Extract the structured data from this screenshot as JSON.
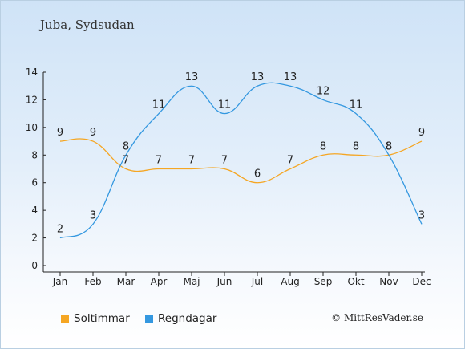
{
  "chart_data": {
    "type": "line",
    "title": "Juba, Sydsudan",
    "categories": [
      "Jan",
      "Feb",
      "Mar",
      "Apr",
      "Maj",
      "Jun",
      "Jul",
      "Aug",
      "Sep",
      "Okt",
      "Nov",
      "Dec"
    ],
    "series": [
      {
        "name": "Soltimmar",
        "color": "#f5a623",
        "values": [
          9,
          9,
          7,
          7,
          7,
          7,
          6,
          7,
          8,
          8,
          8,
          9
        ]
      },
      {
        "name": "Regndagar",
        "color": "#3498e0",
        "values": [
          2,
          3,
          8,
          11,
          13,
          11,
          13,
          13,
          12,
          11,
          8,
          3
        ]
      }
    ],
    "yticks": [
      0,
      2,
      4,
      6,
      8,
      10,
      12,
      14
    ],
    "ylim": [
      0,
      14
    ],
    "grid": false,
    "legend": "bottom-left"
  },
  "copyright": "© MittResVader.se"
}
